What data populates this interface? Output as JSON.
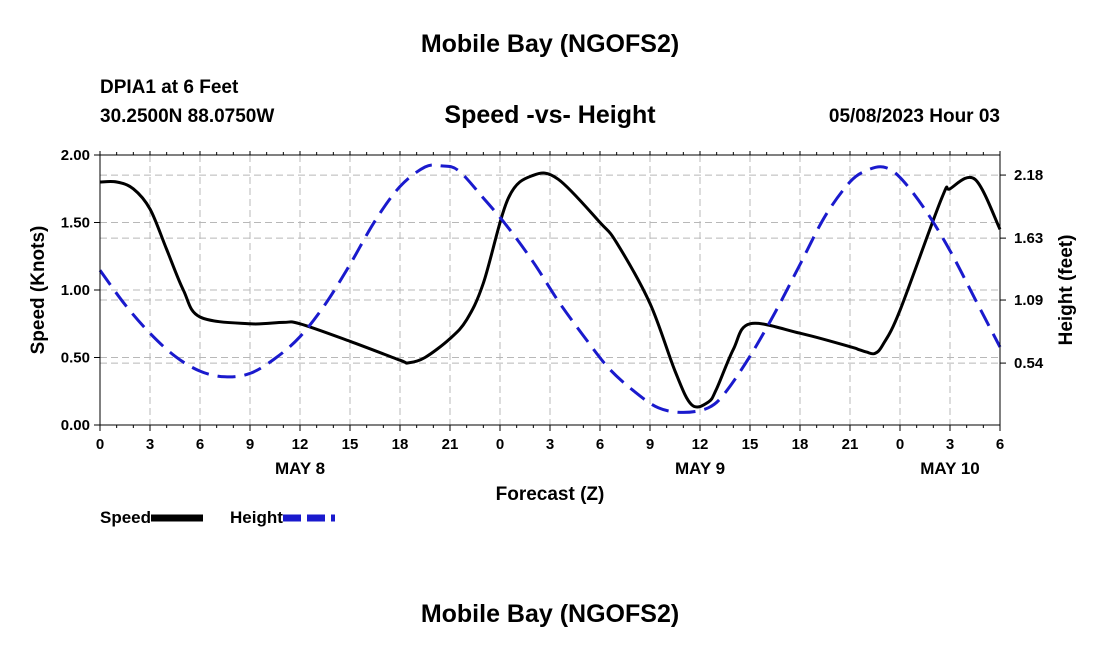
{
  "header": {
    "title": "Mobile Bay (NGOFS2)",
    "station": "DPIA1 at 6 Feet",
    "coordinates": "30.2500N  88.0750W",
    "subtitle": "Speed -vs- Height",
    "datetime": "05/08/2023 Hour 03"
  },
  "footer": {
    "title": "Mobile Bay (NGOFS2)"
  },
  "legend": {
    "speed_label": "Speed",
    "height_label": "Height"
  },
  "chart_data": {
    "type": "line",
    "xlabel": "Forecast (Z)",
    "ylabel_left": "Speed (Knots)",
    "ylabel_right": "Height (feet)",
    "x_unit": "hours from May 8 00Z",
    "xlim": [
      0,
      54
    ],
    "x_tick_values": [
      0,
      3,
      6,
      9,
      12,
      15,
      18,
      21,
      24,
      27,
      30,
      33,
      36,
      39,
      42,
      45,
      48,
      51,
      54
    ],
    "x_tick_labels": [
      "0",
      "3",
      "6",
      "9",
      "12",
      "15",
      "18",
      "21",
      "0",
      "3",
      "6",
      "9",
      "12",
      "15",
      "18",
      "21",
      "0",
      "3",
      "6"
    ],
    "date_labels": [
      {
        "x": 12,
        "label": "MAY 8"
      },
      {
        "x": 36,
        "label": "MAY 9"
      },
      {
        "x": 51,
        "label": "MAY 10"
      }
    ],
    "ylim_left": [
      0,
      2
    ],
    "y_ticks_left": [
      "0.00",
      "0.50",
      "1.00",
      "1.50",
      "2.00"
    ],
    "y_tick_values_left": [
      0,
      0.5,
      1,
      1.5,
      2
    ],
    "ylim_right": [
      0,
      2.355
    ],
    "y_ticks_right": [
      "0.54",
      "1.09",
      "1.63",
      "2.18"
    ],
    "y_tick_values_right": [
      0.54,
      1.09,
      1.63,
      2.18
    ],
    "grid": true,
    "series": [
      {
        "name": "Speed",
        "axis": "left",
        "color": "#000000",
        "style": "solid",
        "x": [
          0,
          1,
          2,
          3,
          4,
          5,
          6,
          9,
          11,
          12,
          15,
          18,
          18.5,
          19.5,
          21,
          22,
          23,
          24.5,
          26,
          27.5,
          30,
          31,
          33,
          34.5,
          35.5,
          36.5,
          37,
          38,
          39,
          42,
          45,
          45.5,
          46,
          46.5,
          47,
          48,
          50.5,
          51,
          52.5,
          54
        ],
        "values": [
          1.8,
          1.8,
          1.75,
          1.6,
          1.3,
          1.0,
          0.8,
          0.75,
          0.76,
          0.75,
          0.62,
          0.48,
          0.46,
          0.5,
          0.64,
          0.78,
          1.05,
          1.68,
          1.85,
          1.82,
          1.5,
          1.35,
          0.9,
          0.4,
          0.15,
          0.17,
          0.27,
          0.56,
          0.75,
          0.68,
          0.58,
          0.56,
          0.54,
          0.53,
          0.6,
          0.85,
          1.68,
          1.75,
          1.82,
          1.45
        ]
      },
      {
        "name": "Height",
        "axis": "right",
        "color": "#1a1acd",
        "style": "dashed",
        "x": [
          0,
          1.5,
          3,
          4.5,
          6,
          7.5,
          9,
          10.5,
          12,
          13.5,
          15,
          16.5,
          18,
          19.5,
          20.5,
          21.5,
          23,
          24.5,
          26,
          27.5,
          29,
          30.5,
          32,
          33.5,
          35,
          36.5,
          37.5,
          39,
          40.5,
          42,
          43.5,
          45,
          46,
          47,
          48,
          49.5,
          51,
          52.5,
          54
        ],
        "values": [
          1.35,
          1.05,
          0.8,
          0.6,
          0.47,
          0.42,
          0.45,
          0.58,
          0.77,
          1.05,
          1.4,
          1.78,
          2.08,
          2.25,
          2.26,
          2.22,
          1.98,
          1.72,
          1.42,
          1.08,
          0.78,
          0.5,
          0.3,
          0.15,
          0.11,
          0.15,
          0.28,
          0.6,
          0.98,
          1.4,
          1.82,
          2.12,
          2.22,
          2.25,
          2.16,
          1.88,
          1.52,
          1.1,
          0.68
        ]
      }
    ]
  }
}
